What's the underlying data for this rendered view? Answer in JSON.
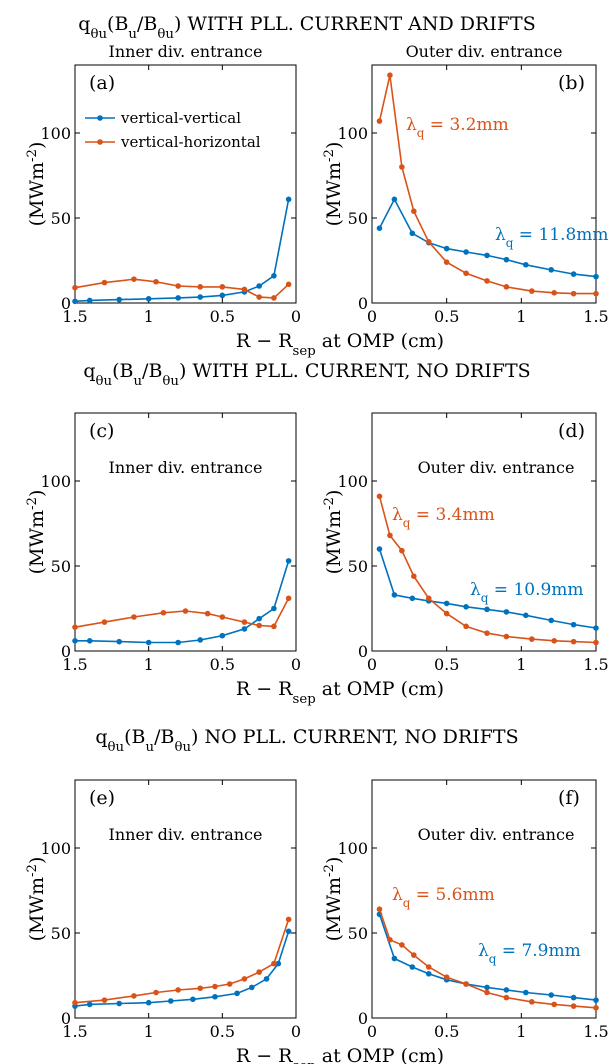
{
  "colors": {
    "blue": "#0072BD",
    "orange": "#D95319"
  },
  "legend": [
    "vertical-vertical",
    "vertical-horizontal"
  ],
  "xlabel": "R − R_sep at OMP (cm)",
  "ylabel": "(MWm⁻²)",
  "rows": [
    {
      "title": "q_θu(B_u/B_θu) WITH PLL. CURRENT AND DRIFTS"
    },
    {
      "title": "q_θu(B_u/B_θu) WITH PLL. CURRENT, NO DRIFTS"
    },
    {
      "title": "q_θu(B_u/B_θu) NO PLL. CURRENT, NO DRIFTS"
    }
  ],
  "chart_data": [
    {
      "type": "line",
      "panel": "(a)",
      "subtitle": "Inner div. entrance",
      "xlim": [
        1.5,
        0
      ],
      "x_reversed": true,
      "ylim": [
        0,
        140
      ],
      "xticks": [
        1.5,
        1,
        0.5,
        0
      ],
      "yticks": [
        0,
        50,
        100
      ],
      "series": [
        {
          "name": "vertical-vertical",
          "color": "blue",
          "x": [
            1.5,
            1.4,
            1.2,
            1.0,
            0.8,
            0.65,
            0.5,
            0.35,
            0.25,
            0.15,
            0.05
          ],
          "y": [
            1,
            1.5,
            2,
            2.5,
            3,
            3.5,
            4.5,
            6.5,
            10,
            16,
            61
          ]
        },
        {
          "name": "vertical-horizontal",
          "color": "orange",
          "x": [
            1.5,
            1.3,
            1.1,
            0.95,
            0.8,
            0.65,
            0.5,
            0.35,
            0.25,
            0.15,
            0.05
          ],
          "y": [
            9,
            12,
            14,
            12.5,
            10,
            9.5,
            9.5,
            8,
            3.5,
            3,
            11
          ]
        }
      ]
    },
    {
      "type": "line",
      "panel": "(b)",
      "subtitle": "Outer div. entrance",
      "xlim": [
        0,
        1.5
      ],
      "ylim": [
        0,
        140
      ],
      "xticks": [
        0,
        0.5,
        1,
        1.5
      ],
      "yticks": [
        0,
        50,
        100
      ],
      "annotations": [
        {
          "text": "λ_q = 3.2mm",
          "color": "orange"
        },
        {
          "text": "λ_q = 11.8mm",
          "color": "blue"
        }
      ],
      "series": [
        {
          "name": "vertical-vertical",
          "color": "blue",
          "x": [
            0.05,
            0.15,
            0.27,
            0.38,
            0.5,
            0.63,
            0.77,
            0.9,
            1.03,
            1.2,
            1.35,
            1.5
          ],
          "y": [
            44,
            61,
            41,
            35.5,
            32,
            30,
            28,
            25.5,
            22.5,
            19.5,
            17,
            15.5
          ]
        },
        {
          "name": "vertical-horizontal",
          "color": "orange",
          "x": [
            0.05,
            0.12,
            0.2,
            0.28,
            0.38,
            0.5,
            0.63,
            0.77,
            0.9,
            1.07,
            1.22,
            1.35,
            1.5
          ],
          "y": [
            107,
            134,
            80,
            54,
            36,
            24,
            17.5,
            13,
            9.5,
            7,
            6,
            5.5,
            5.5
          ]
        }
      ]
    },
    {
      "type": "line",
      "panel": "(c)",
      "subtitle": "Inner div. entrance",
      "xlim": [
        1.5,
        0
      ],
      "x_reversed": true,
      "ylim": [
        0,
        140
      ],
      "xticks": [
        1.5,
        1,
        0.5,
        0
      ],
      "yticks": [
        0,
        50,
        100
      ],
      "series": [
        {
          "name": "vertical-vertical",
          "color": "blue",
          "x": [
            1.5,
            1.4,
            1.2,
            1.0,
            0.8,
            0.65,
            0.5,
            0.35,
            0.25,
            0.15,
            0.05
          ],
          "y": [
            6,
            6,
            5.5,
            5,
            5,
            6.5,
            9,
            13,
            19,
            25,
            53
          ]
        },
        {
          "name": "vertical-horizontal",
          "color": "orange",
          "x": [
            1.5,
            1.3,
            1.1,
            0.9,
            0.75,
            0.6,
            0.5,
            0.35,
            0.25,
            0.15,
            0.05
          ],
          "y": [
            14,
            17,
            20,
            22.5,
            23.5,
            22,
            20,
            17,
            15,
            14.5,
            31
          ]
        }
      ]
    },
    {
      "type": "line",
      "panel": "(d)",
      "subtitle": "Outer div. entrance",
      "xlim": [
        0,
        1.5
      ],
      "ylim": [
        0,
        140
      ],
      "xticks": [
        0,
        0.5,
        1,
        1.5
      ],
      "yticks": [
        0,
        50,
        100
      ],
      "annotations": [
        {
          "text": "λ_q = 3.4mm",
          "color": "orange"
        },
        {
          "text": "λ_q = 10.9mm",
          "color": "blue"
        }
      ],
      "series": [
        {
          "name": "vertical-vertical",
          "color": "blue",
          "x": [
            0.05,
            0.15,
            0.27,
            0.38,
            0.5,
            0.63,
            0.77,
            0.9,
            1.03,
            1.2,
            1.35,
            1.5
          ],
          "y": [
            60,
            33,
            31,
            29.5,
            28,
            26,
            24.5,
            23,
            21,
            18,
            15.5,
            13.5
          ]
        },
        {
          "name": "vertical-horizontal",
          "color": "orange",
          "x": [
            0.05,
            0.12,
            0.2,
            0.28,
            0.38,
            0.5,
            0.63,
            0.77,
            0.9,
            1.07,
            1.22,
            1.35,
            1.5
          ],
          "y": [
            91,
            68,
            59,
            44,
            31,
            22,
            14.5,
            10.5,
            8.5,
            7,
            6,
            5.5,
            5
          ]
        }
      ]
    },
    {
      "type": "line",
      "panel": "(e)",
      "subtitle": "Inner div. entrance",
      "xlim": [
        1.5,
        0
      ],
      "x_reversed": true,
      "ylim": [
        0,
        140
      ],
      "xticks": [
        1.5,
        1,
        0.5,
        0
      ],
      "yticks": [
        0,
        50,
        100
      ],
      "series": [
        {
          "name": "vertical-vertical",
          "color": "blue",
          "x": [
            1.5,
            1.4,
            1.2,
            1.0,
            0.85,
            0.7,
            0.55,
            0.4,
            0.3,
            0.2,
            0.12,
            0.05
          ],
          "y": [
            7,
            8,
            8.5,
            9,
            10,
            11,
            12.5,
            14.5,
            18,
            23,
            32,
            51
          ]
        },
        {
          "name": "vertical-horizontal",
          "color": "orange",
          "x": [
            1.5,
            1.3,
            1.1,
            0.95,
            0.8,
            0.65,
            0.55,
            0.45,
            0.35,
            0.25,
            0.15,
            0.05
          ],
          "y": [
            9,
            10.5,
            13,
            15,
            16.5,
            17.5,
            18.5,
            20,
            23,
            27,
            32,
            58
          ]
        }
      ]
    },
    {
      "type": "line",
      "panel": "(f)",
      "subtitle": "Outer div. entrance",
      "xlim": [
        0,
        1.5
      ],
      "ylim": [
        0,
        140
      ],
      "xticks": [
        0,
        0.5,
        1,
        1.5
      ],
      "yticks": [
        0,
        50,
        100
      ],
      "annotations": [
        {
          "text": "λ_q = 5.6mm",
          "color": "orange"
        },
        {
          "text": "λ_q = 7.9mm",
          "color": "blue"
        }
      ],
      "series": [
        {
          "name": "vertical-vertical",
          "color": "blue",
          "x": [
            0.05,
            0.15,
            0.27,
            0.38,
            0.5,
            0.63,
            0.77,
            0.9,
            1.03,
            1.2,
            1.35,
            1.5
          ],
          "y": [
            61,
            35,
            30,
            26,
            22.5,
            20,
            18,
            16.5,
            15,
            13.5,
            12,
            10.5
          ]
        },
        {
          "name": "vertical-horizontal",
          "color": "orange",
          "x": [
            0.05,
            0.12,
            0.2,
            0.28,
            0.38,
            0.5,
            0.63,
            0.77,
            0.9,
            1.07,
            1.22,
            1.35,
            1.5
          ],
          "y": [
            64,
            46,
            43,
            37,
            30,
            24,
            20,
            15,
            12,
            9.5,
            8,
            7,
            6
          ]
        }
      ]
    }
  ]
}
